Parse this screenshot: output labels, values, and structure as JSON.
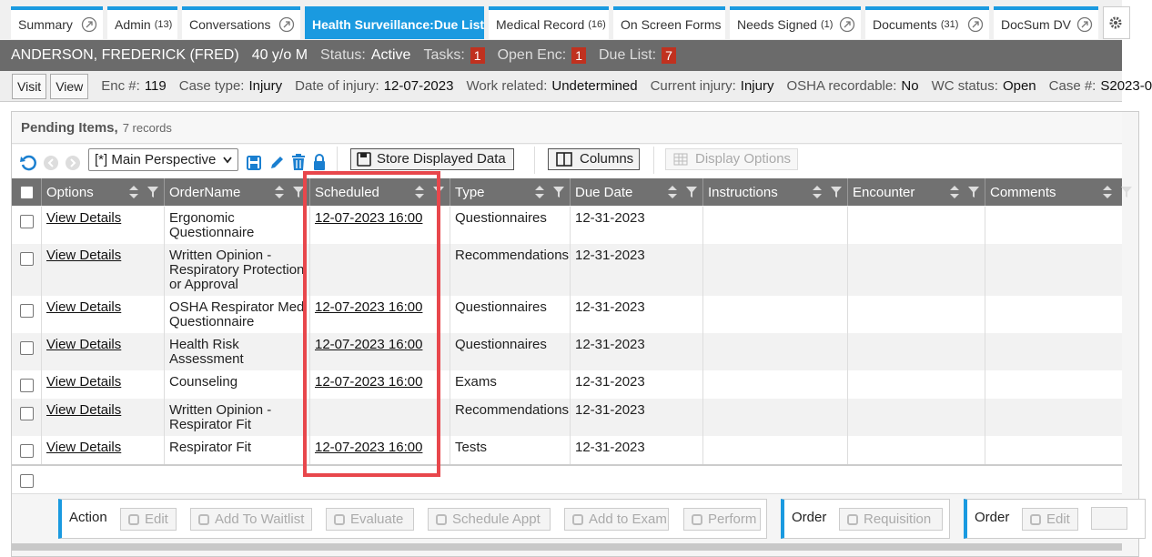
{
  "tabs": [
    {
      "label": "Summary"
    },
    {
      "label": "Admin",
      "count": "(13)"
    },
    {
      "label": "Conversations"
    },
    {
      "label": "Health Surveillance:Due List"
    },
    {
      "label": "Medical Record",
      "count": "(16)"
    },
    {
      "label": "On Screen Forms"
    },
    {
      "label": "Needs Signed",
      "count": "(1)"
    },
    {
      "label": "Documents",
      "count": "(31)"
    },
    {
      "label": "DocSum DV"
    }
  ],
  "active_tab": 3,
  "patient_bar": {
    "name": "ANDERSON, FREDERICK (FRED)",
    "age_sex": "40 y/o M",
    "fields": [
      {
        "label": "Status:",
        "value": "Active"
      },
      {
        "label": "Tasks:",
        "badge": 1
      },
      {
        "label": "Open Enc:",
        "badge": 1
      },
      {
        "label": "Due List:",
        "badge": 7
      }
    ]
  },
  "encounter_bar": {
    "buttons": [
      "Visit",
      "View"
    ],
    "fields": [
      {
        "label": "Enc #:",
        "value": "119"
      },
      {
        "label": "Case type:",
        "value": "Injury"
      },
      {
        "label": "Date of injury:",
        "value": "12-07-2023"
      },
      {
        "label": "Work related:",
        "value": "Undetermined"
      },
      {
        "label": "Current injury:",
        "value": "Injury"
      },
      {
        "label": "OSHA recordable:",
        "value": "No"
      },
      {
        "label": "WC status:",
        "value": "Open"
      },
      {
        "label": "Case #:",
        "value": "S2023-0"
      }
    ]
  },
  "panel": {
    "title": "Pending Items,",
    "record_count": "7 records",
    "toolbar": {
      "perspective": "[*] Main Perspective",
      "store_button": "Store Displayed Data",
      "columns_button": "Columns",
      "display_options_button": "Display Options"
    },
    "table": {
      "columns": [
        "Options",
        "OrderName",
        "Scheduled",
        "Type",
        "Due Date",
        "Instructions",
        "Encounter",
        "Comments"
      ],
      "rows": [
        [
          "View Details",
          "Ergonomic Questionnaire",
          "12-07-2023 16:00",
          "Questionnaires",
          "12-31-2023"
        ],
        [
          "View Details",
          "Written Opinion - Respiratory Protection or Approval",
          null,
          "Recommendations",
          "12-31-2023"
        ],
        [
          "View Details",
          "OSHA Respirator Med Questionnaire",
          "12-07-2023 16:00",
          "Questionnaires",
          "12-31-2023"
        ],
        [
          "View Details",
          "Health Risk Assessment",
          "12-07-2023 16:00",
          "Questionnaires",
          "12-31-2023"
        ],
        [
          "View Details",
          "Counseling",
          "12-07-2023 16:00",
          "Exams",
          "12-31-2023"
        ],
        [
          "View Details",
          "Written Opinion - Respirator Fit",
          null,
          "Recommendations",
          "12-31-2023"
        ],
        [
          "View Details",
          "Respirator Fit",
          "12-07-2023 16:00",
          "Tests",
          "12-31-2023"
        ]
      ]
    }
  },
  "action_bar": {
    "groups": [
      {
        "label": "Action",
        "buttons": [
          "Edit",
          "Add To Waitlist",
          "Evaluate",
          "Schedule Appt",
          "Add to Exam",
          "Perform"
        ]
      },
      {
        "label": "Order",
        "buttons": [
          "Requisition"
        ]
      },
      {
        "label": "Order",
        "buttons": [
          "Edit"
        ]
      }
    ]
  }
}
